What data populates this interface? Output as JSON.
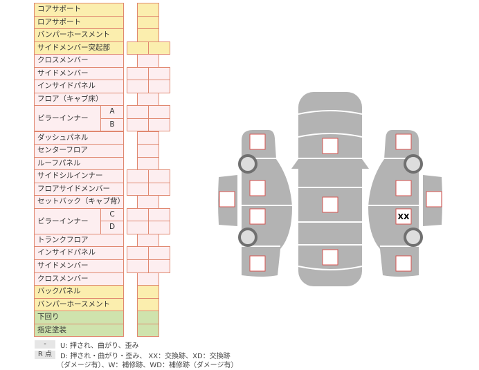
{
  "rows": [
    {
      "label": "コアサポート",
      "color": "y",
      "cells": 1
    },
    {
      "label": "ロアサポート",
      "color": "y",
      "cells": 1
    },
    {
      "label": "バンパーホースメント",
      "color": "y",
      "cells": 1
    },
    {
      "label": "サイドメンバー突起部",
      "color": "y",
      "cells": 2
    },
    {
      "label": "クロスメンバー",
      "color": "p",
      "cells": 1
    },
    {
      "label": "サイドメンバー",
      "color": "p",
      "cells": 2
    },
    {
      "label": "インサイドパネル",
      "color": "p",
      "cells": 2
    },
    {
      "label": "フロア（キャブ床）",
      "color": "p",
      "cells": 1
    },
    {
      "label": "ピラーインナー",
      "color": "p",
      "cells": 2,
      "subs": [
        "A",
        "B"
      ]
    },
    {
      "label": "ダッシュパネル",
      "color": "p",
      "cells": 1
    },
    {
      "label": "センターフロア",
      "color": "p",
      "cells": 1
    },
    {
      "label": "ルーフパネル",
      "color": "p",
      "cells": 1
    },
    {
      "label": "サイドシルインナー",
      "color": "p",
      "cells": 2
    },
    {
      "label": "フロアサイドメンバー",
      "color": "p",
      "cells": 2
    },
    {
      "label": "セットバック（キャブ背）",
      "color": "p",
      "cells": 1
    },
    {
      "label": "ピラーインナー",
      "color": "p",
      "cells": 2,
      "subs": [
        "C",
        "D"
      ]
    },
    {
      "label": "トランクフロア",
      "color": "p",
      "cells": 1
    },
    {
      "label": "インサイドパネル",
      "color": "p",
      "cells": 2
    },
    {
      "label": "サイドメンバー",
      "color": "p",
      "cells": 2
    },
    {
      "label": "クロスメンバー",
      "color": "p",
      "cells": 1
    },
    {
      "label": "バックパネル",
      "color": "y",
      "cells": 1
    },
    {
      "label": "バンパーホースメント",
      "color": "y",
      "cells": 1
    },
    {
      "label": "下回り",
      "color": "g",
      "cells": 1
    },
    {
      "label": "指定塗装",
      "color": "g",
      "cells": 1
    }
  ],
  "legend": {
    "key1": "-",
    "text1": "U: 押され、曲がり、歪み",
    "key2": "R 点",
    "text2": "D: 押され・曲がり・歪み、 XX：交換跡、XD：交換跡",
    "text3": "（ダメージ有）、W：補修跡、WD：補修跡（ダメージ有）"
  },
  "diagram": {
    "marks": [
      "",
      "",
      "",
      "",
      "",
      "",
      "",
      "",
      "",
      "",
      "",
      "",
      "XX"
    ]
  },
  "colors": {
    "body": "#b3b3b3",
    "mark_border": "#d9534f",
    "table_border": "#e08870"
  }
}
